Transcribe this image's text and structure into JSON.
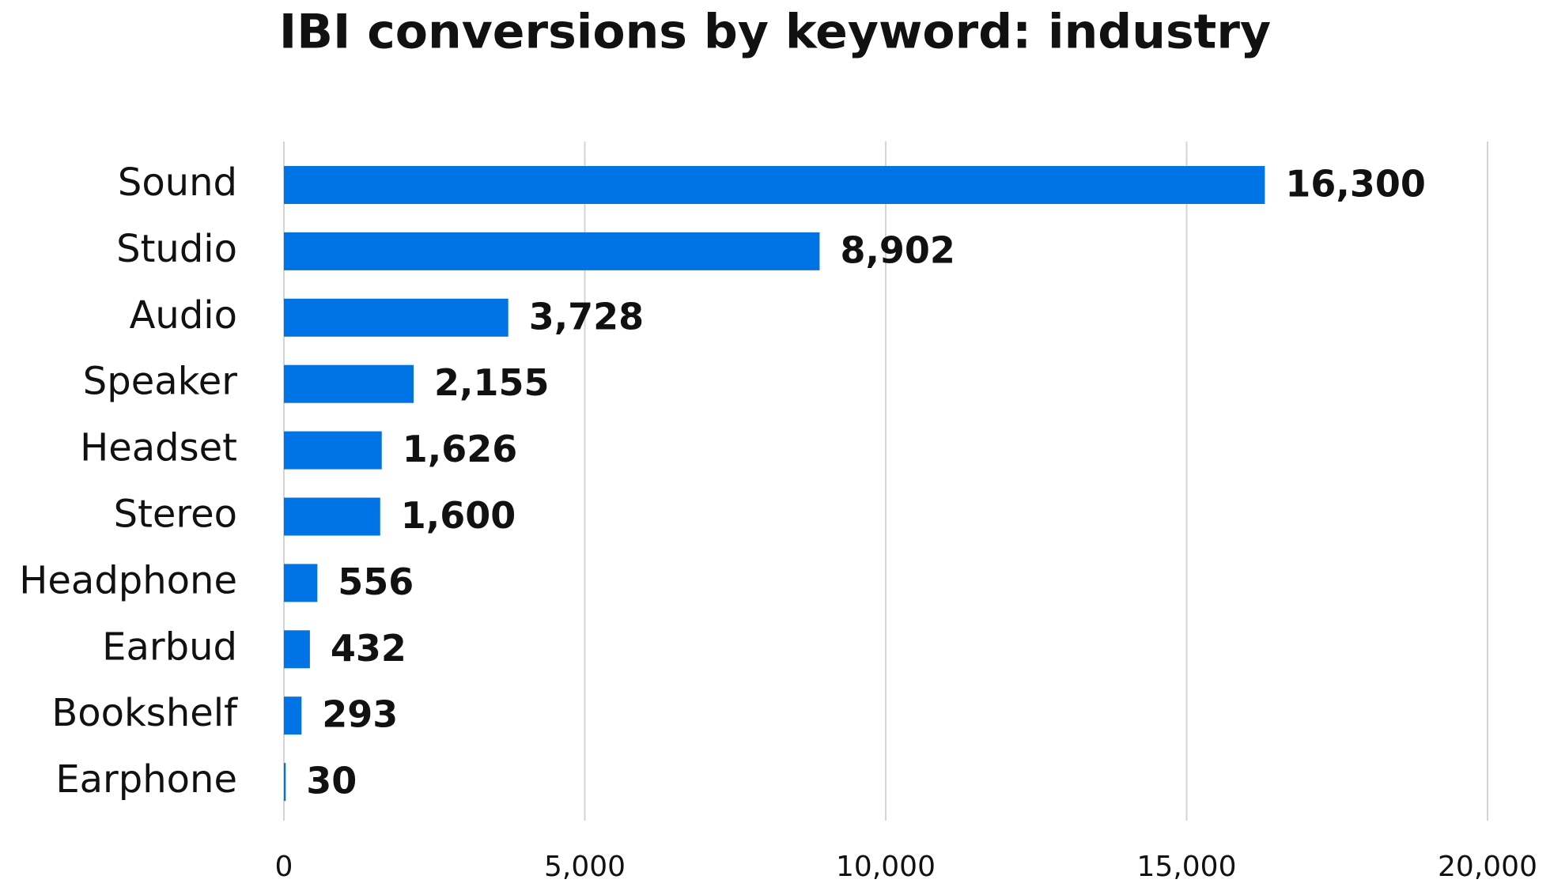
{
  "chart_data": {
    "type": "hbar",
    "title": "IBI conversions by keyword: industry",
    "categories": [
      "Sound",
      "Studio",
      "Audio",
      "Speaker",
      "Headset",
      "Stereo",
      "Headphone",
      "Earbud",
      "Bookshelf",
      "Earphone"
    ],
    "values": [
      16300,
      8902,
      3728,
      2155,
      1626,
      1600,
      556,
      432,
      293,
      30
    ],
    "value_labels": [
      "16,300",
      "8,902",
      "3,728",
      "2,155",
      "1,626",
      "1,600",
      "556",
      "432",
      "293",
      "30"
    ],
    "color": "#0073e6",
    "xlim": [
      0,
      20000
    ],
    "xticks": [
      0,
      {
        "value": 5000,
        "label": "5,000"
      },
      {
        "value": 10000,
        "label": "10,000"
      },
      {
        "value": 15000,
        "label": "15,000"
      },
      {
        "value": 20000,
        "label": "20,000"
      }
    ],
    "grid": true
  }
}
